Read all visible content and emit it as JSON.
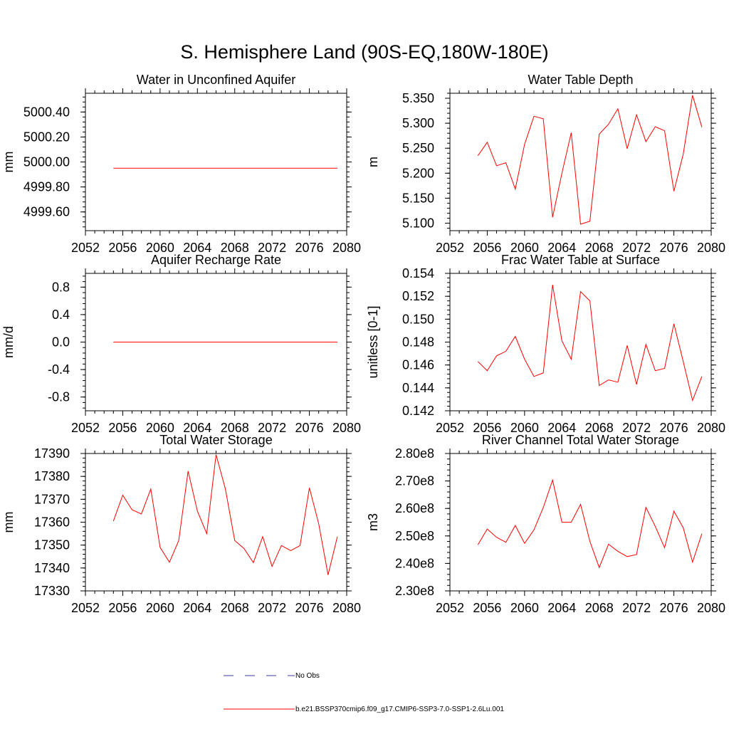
{
  "figure": {
    "title": "S. Hemisphere Land (90S-EQ,180W-180E)"
  },
  "legend": {
    "obs_label": "No Obs",
    "model_label": "b.e21.BSSP370cmip6.f09_g17.CMIP6-SSP3-7.0-SSP1-2.6Lu.001",
    "model_color": "#ff0000",
    "obs_color": "#3b3b9a"
  },
  "chart_data": [
    {
      "type": "line",
      "title": "Water in Unconfined Aquifer",
      "ylabel": "mm",
      "xlim": [
        2052,
        2080
      ],
      "ylim": [
        4999.45,
        5000.55
      ],
      "xticks": [
        "2052",
        "2056",
        "2060",
        "2064",
        "2068",
        "2072",
        "2076",
        "2080"
      ],
      "yticks": [
        {
          "value": 4999.6,
          "label": "4999.60"
        },
        {
          "value": 4999.8,
          "label": "4999.80"
        },
        {
          "value": 5000.0,
          "label": "5000.00"
        },
        {
          "value": 5000.2,
          "label": "5000.20"
        },
        {
          "value": 5000.4,
          "label": "5000.40"
        }
      ],
      "x": [
        2055,
        2056,
        2057,
        2058,
        2059,
        2060,
        2061,
        2062,
        2063,
        2064,
        2065,
        2066,
        2067,
        2068,
        2069,
        2070,
        2071,
        2072,
        2073,
        2074,
        2075,
        2076,
        2077,
        2078,
        2079
      ],
      "values": [
        4999.95,
        4999.95,
        4999.95,
        4999.95,
        4999.95,
        4999.95,
        4999.95,
        4999.95,
        4999.95,
        4999.95,
        4999.95,
        4999.95,
        4999.95,
        4999.95,
        4999.95,
        4999.95,
        4999.95,
        4999.95,
        4999.95,
        4999.95,
        4999.95,
        4999.95,
        4999.95,
        4999.95,
        4999.95
      ]
    },
    {
      "type": "line",
      "title": "Water Table Depth",
      "ylabel": "m",
      "xlim": [
        2052,
        2080
      ],
      "ylim": [
        5.085,
        5.36
      ],
      "xticks": [
        "2052",
        "2056",
        "2060",
        "2064",
        "2068",
        "2072",
        "2076",
        "2080"
      ],
      "yticks": [
        {
          "value": 5.1,
          "label": "5.100"
        },
        {
          "value": 5.15,
          "label": "5.150"
        },
        {
          "value": 5.2,
          "label": "5.200"
        },
        {
          "value": 5.25,
          "label": "5.250"
        },
        {
          "value": 5.3,
          "label": "5.300"
        },
        {
          "value": 5.35,
          "label": "5.350"
        }
      ],
      "x": [
        2055,
        2056,
        2057,
        2058,
        2059,
        2060,
        2061,
        2062,
        2063,
        2064,
        2065,
        2066,
        2067,
        2068,
        2069,
        2070,
        2071,
        2072,
        2073,
        2074,
        2075,
        2076,
        2077,
        2078,
        2079
      ],
      "values": [
        5.235,
        5.262,
        5.215,
        5.221,
        5.168,
        5.258,
        5.314,
        5.309,
        5.112,
        5.2,
        5.281,
        5.098,
        5.104,
        5.278,
        5.298,
        5.329,
        5.249,
        5.317,
        5.263,
        5.293,
        5.285,
        5.164,
        5.238,
        5.356,
        5.292
      ]
    },
    {
      "type": "line",
      "title": "Aquifer Recharge Rate",
      "ylabel": "mm/d",
      "xlim": [
        2052,
        2080
      ],
      "ylim": [
        -1.0,
        1.0
      ],
      "xticks": [
        "2052",
        "2056",
        "2060",
        "2064",
        "2068",
        "2072",
        "2076",
        "2080"
      ],
      "yticks": [
        {
          "value": -0.8,
          "label": "-0.8"
        },
        {
          "value": -0.4,
          "label": "-0.4"
        },
        {
          "value": 0.0,
          "label": "0.0"
        },
        {
          "value": 0.4,
          "label": "0.4"
        },
        {
          "value": 0.8,
          "label": "0.8"
        }
      ],
      "x": [
        2055,
        2056,
        2057,
        2058,
        2059,
        2060,
        2061,
        2062,
        2063,
        2064,
        2065,
        2066,
        2067,
        2068,
        2069,
        2070,
        2071,
        2072,
        2073,
        2074,
        2075,
        2076,
        2077,
        2078,
        2079
      ],
      "values": [
        0,
        0,
        0,
        0,
        0,
        0,
        0,
        0,
        0,
        0,
        0,
        0,
        0,
        0,
        0,
        0,
        0,
        0,
        0,
        0,
        0,
        0,
        0,
        0,
        0
      ]
    },
    {
      "type": "line",
      "title": "Frac Water Table at Surface",
      "ylabel": "unitless [0-1]",
      "xlim": [
        2052,
        2080
      ],
      "ylim": [
        0.142,
        0.154
      ],
      "xticks": [
        "2052",
        "2056",
        "2060",
        "2064",
        "2068",
        "2072",
        "2076",
        "2080"
      ],
      "yticks": [
        {
          "value": 0.142,
          "label": "0.142"
        },
        {
          "value": 0.144,
          "label": "0.144"
        },
        {
          "value": 0.146,
          "label": "0.146"
        },
        {
          "value": 0.148,
          "label": "0.148"
        },
        {
          "value": 0.15,
          "label": "0.150"
        },
        {
          "value": 0.152,
          "label": "0.152"
        },
        {
          "value": 0.154,
          "label": "0.154"
        }
      ],
      "x": [
        2055,
        2056,
        2057,
        2058,
        2059,
        2060,
        2061,
        2062,
        2063,
        2064,
        2065,
        2066,
        2067,
        2068,
        2069,
        2070,
        2071,
        2072,
        2073,
        2074,
        2075,
        2076,
        2077,
        2078,
        2079
      ],
      "values": [
        0.1463,
        0.1455,
        0.1468,
        0.1472,
        0.1485,
        0.1465,
        0.145,
        0.1453,
        0.153,
        0.1481,
        0.1465,
        0.1524,
        0.1516,
        0.1442,
        0.1447,
        0.1445,
        0.1477,
        0.1443,
        0.1478,
        0.1455,
        0.1457,
        0.1496,
        0.1463,
        0.1429,
        0.145
      ]
    },
    {
      "type": "line",
      "title": "Total Water Storage",
      "ylabel": "mm",
      "xlim": [
        2052,
        2080
      ],
      "ylim": [
        17330,
        17390
      ],
      "xticks": [
        "2052",
        "2056",
        "2060",
        "2064",
        "2068",
        "2072",
        "2076",
        "2080"
      ],
      "yticks": [
        {
          "value": 17330,
          "label": "17330"
        },
        {
          "value": 17340,
          "label": "17340"
        },
        {
          "value": 17350,
          "label": "17350"
        },
        {
          "value": 17360,
          "label": "17360"
        },
        {
          "value": 17370,
          "label": "17370"
        },
        {
          "value": 17380,
          "label": "17380"
        },
        {
          "value": 17390,
          "label": "17390"
        }
      ],
      "x": [
        2055,
        2056,
        2057,
        2058,
        2059,
        2060,
        2061,
        2062,
        2063,
        2064,
        2065,
        2066,
        2067,
        2068,
        2069,
        2070,
        2071,
        2072,
        2073,
        2074,
        2075,
        2076,
        2077,
        2078,
        2079
      ],
      "values": [
        17360.5,
        17371.8,
        17365.4,
        17363.6,
        17374.5,
        17349.0,
        17342.5,
        17352.0,
        17382.3,
        17364.8,
        17355.0,
        17389.5,
        17374.5,
        17352.0,
        17348.5,
        17342.3,
        17353.7,
        17340.7,
        17349.8,
        17347.6,
        17349.8,
        17375.0,
        17359.3,
        17337.0,
        17353.7
      ]
    },
    {
      "type": "line",
      "title": "River Channel Total Water Storage",
      "ylabel": "m3",
      "xlim": [
        2052,
        2080
      ],
      "ylim": [
        230000000.0,
        280000000.0
      ],
      "xticks": [
        "2052",
        "2056",
        "2060",
        "2064",
        "2068",
        "2072",
        "2076",
        "2080"
      ],
      "yticks": [
        {
          "value": 230000000.0,
          "label": "2.30e8"
        },
        {
          "value": 240000000.0,
          "label": "2.40e8"
        },
        {
          "value": 250000000.0,
          "label": "2.50e8"
        },
        {
          "value": 260000000.0,
          "label": "2.60e8"
        },
        {
          "value": 270000000.0,
          "label": "2.70e8"
        },
        {
          "value": 280000000.0,
          "label": "2.80e8"
        }
      ],
      "x": [
        2055,
        2056,
        2057,
        2058,
        2059,
        2060,
        2061,
        2062,
        2063,
        2064,
        2065,
        2066,
        2067,
        2068,
        2069,
        2070,
        2071,
        2072,
        2073,
        2074,
        2075,
        2076,
        2077,
        2078,
        2079
      ],
      "values": [
        246800000.0,
        252500000.0,
        249500000.0,
        247700000.0,
        253800000.0,
        247300000.0,
        252200000.0,
        260300000.0,
        270300000.0,
        255000000.0,
        255000000.0,
        261500000.0,
        248000000.0,
        238500000.0,
        247000000.0,
        244400000.0,
        242500000.0,
        243200000.0,
        260400000.0,
        253500000.0,
        245700000.0,
        259000000.0,
        253000000.0,
        240500000.0,
        250800000.0
      ]
    }
  ]
}
